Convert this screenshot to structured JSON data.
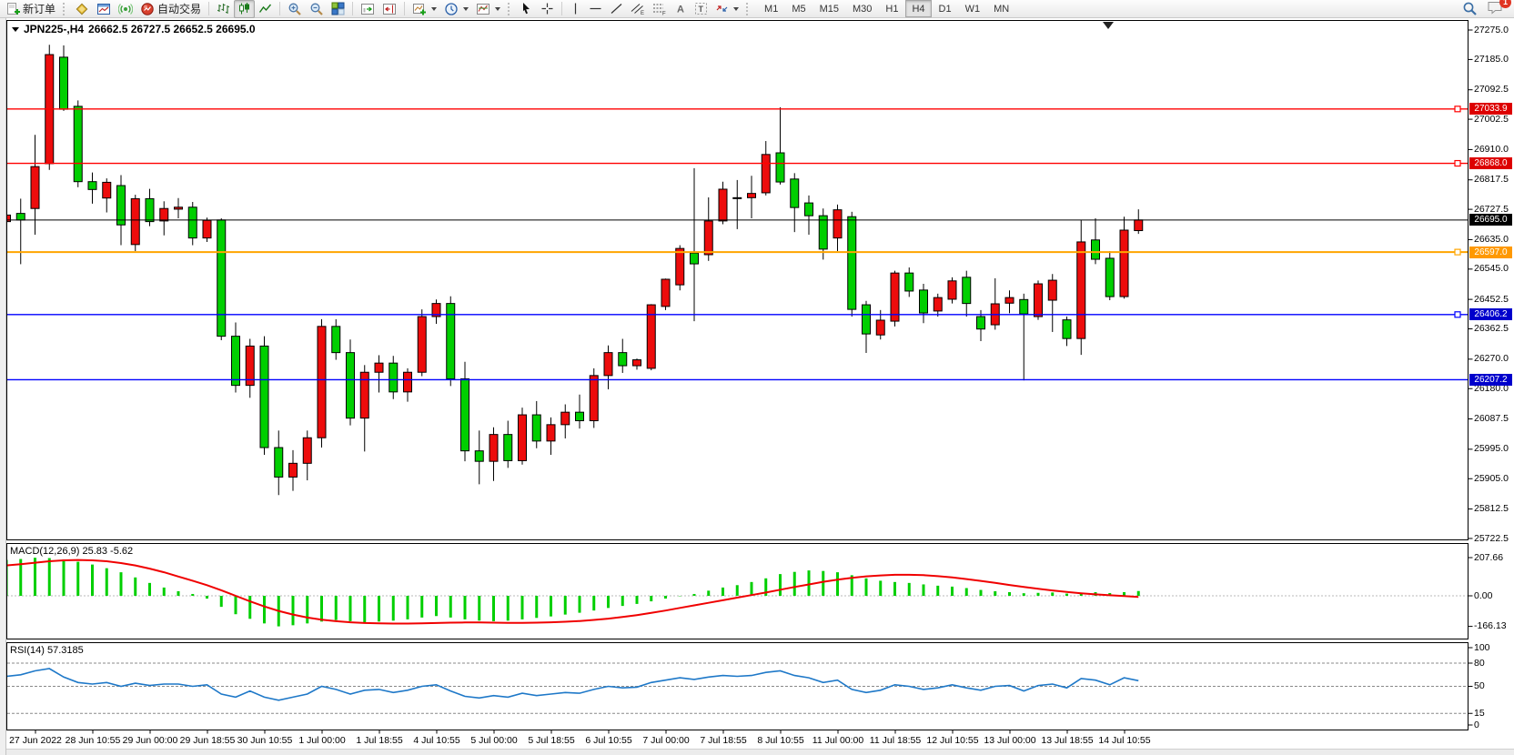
{
  "toolbar": {
    "new_order": "新订单",
    "auto_trading": "自动交易",
    "timeframes": [
      "M1",
      "M5",
      "M15",
      "M30",
      "H1",
      "H4",
      "D1",
      "W1",
      "MN"
    ],
    "active_timeframe": "H4",
    "chat_badge": "1"
  },
  "chart": {
    "symbol_period": "JPN225-,H4",
    "ohlc_readout": "26662.5 26727.5 26652.5 26695.0"
  },
  "macd_panel": {
    "label": "MACD(12,26,9) 25.83 -5.62",
    "axis_labels": [
      "207.66",
      "0.00",
      "-166.13"
    ]
  },
  "rsi_panel": {
    "label": "RSI(14) 57.3185",
    "axis_labels": [
      "100",
      "80",
      "50",
      "15",
      "0"
    ]
  },
  "chart_data": {
    "type": "candlestick",
    "symbol": "JPN225-",
    "period": "H4",
    "up_color": "#ed0c0c",
    "down_color": "#00cf00",
    "price_range": [
      25722.5,
      27275.0
    ],
    "y_ticks": [
      "27275.0",
      "27185.0",
      "27092.5",
      "27002.5",
      "26910.0",
      "26817.5",
      "26727.5",
      "26635.0",
      "26545.0",
      "26452.5",
      "26362.5",
      "26270.0",
      "26180.0",
      "26087.5",
      "25995.0",
      "25905.0",
      "25812.5",
      "25722.5"
    ],
    "levels": [
      {
        "value": 27033.9,
        "label": "27033.9",
        "color": "#ff0000",
        "label_bg": "#dd0000",
        "marker": true
      },
      {
        "value": 26868.0,
        "label": "26868.0",
        "color": "#ff0000",
        "label_bg": "#dd0000",
        "marker": true
      },
      {
        "value": 26597.0,
        "label": "26597.0",
        "color": "#ffa500",
        "label_bg": "#ff9900",
        "marker": true
      },
      {
        "value": 26406.2,
        "label": "26406.2",
        "color": "#0000ff",
        "label_bg": "#0000cc",
        "marker": true
      },
      {
        "value": 26207.2,
        "label": "26207.2",
        "color": "#0000ff",
        "label_bg": "#0000cc",
        "marker": false
      }
    ],
    "current_price": {
      "value": 26695.0,
      "label": "26695.0",
      "label_bg": "#000000"
    },
    "x_labels": [
      "27 Jun 2022",
      "28 Jun 10:55",
      "29 Jun 00:00",
      "29 Jun 18:55",
      "30 Jun 10:55",
      "1 Jul 00:00",
      "1 Jul 18:55",
      "4 Jul 10:55",
      "5 Jul 00:00",
      "5 Jul 18:55",
      "6 Jul 10:55",
      "7 Jul 00:00",
      "7 Jul 18:55",
      "8 Jul 10:55",
      "11 Jul 00:00",
      "11 Jul 18:55",
      "12 Jul 10:55",
      "13 Jul 00:00",
      "13 Jul 18:55",
      "14 Jul 10:55"
    ],
    "candles": [
      [
        26690,
        26740,
        26650,
        26710
      ],
      [
        26715,
        26760,
        26560,
        26695
      ],
      [
        26730,
        26955,
        26650,
        26858
      ],
      [
        26867,
        27230,
        26848,
        27200
      ],
      [
        27192,
        27228,
        27028,
        27033
      ],
      [
        27042,
        27060,
        26795,
        26812
      ],
      [
        26812,
        26840,
        26745,
        26788
      ],
      [
        26762,
        26822,
        26718,
        26810
      ],
      [
        26800,
        26832,
        26618,
        26680
      ],
      [
        26620,
        26772,
        26600,
        26760
      ],
      [
        26760,
        26790,
        26676,
        26690
      ],
      [
        26692,
        26752,
        26648,
        26730
      ],
      [
        26728,
        26762,
        26700,
        26734
      ],
      [
        26734,
        26750,
        26618,
        26640
      ],
      [
        26640,
        26702,
        26628,
        26694
      ],
      [
        26695,
        26700,
        26328,
        26340
      ],
      [
        26340,
        26382,
        26168,
        26190
      ],
      [
        26190,
        26332,
        26152,
        26310
      ],
      [
        26310,
        26340,
        25978,
        26000
      ],
      [
        26000,
        26052,
        25855,
        25910
      ],
      [
        25910,
        25992,
        25868,
        25952
      ],
      [
        25952,
        26052,
        25900,
        26030
      ],
      [
        26030,
        26392,
        26000,
        26370
      ],
      [
        26370,
        26392,
        26268,
        26290
      ],
      [
        26290,
        26330,
        26068,
        26090
      ],
      [
        26090,
        26252,
        25988,
        26230
      ],
      [
        26230,
        26282,
        26168,
        26258
      ],
      [
        26258,
        26280,
        26148,
        26170
      ],
      [
        26170,
        26242,
        26140,
        26230
      ],
      [
        26230,
        26422,
        26218,
        26400
      ],
      [
        26400,
        26452,
        26378,
        26440
      ],
      [
        26440,
        26462,
        26188,
        26210
      ],
      [
        26210,
        26262,
        25958,
        25990
      ],
      [
        25990,
        26052,
        25888,
        25958
      ],
      [
        25958,
        26062,
        25898,
        26040
      ],
      [
        26040,
        26082,
        25938,
        25960
      ],
      [
        25960,
        26122,
        25948,
        26100
      ],
      [
        26100,
        26142,
        25998,
        26020
      ],
      [
        26020,
        26092,
        25978,
        26070
      ],
      [
        26070,
        26132,
        26028,
        26108
      ],
      [
        26108,
        26162,
        26058,
        26082
      ],
      [
        26082,
        26242,
        26060,
        26220
      ],
      [
        26220,
        26312,
        26178,
        26290
      ],
      [
        26290,
        26332,
        26228,
        26250
      ],
      [
        26250,
        26272,
        26238,
        26268
      ],
      [
        26242,
        26438,
        26236,
        26436
      ],
      [
        26431,
        26516,
        26420,
        26514
      ],
      [
        26497,
        26618,
        26480,
        26608
      ],
      [
        26594,
        26853,
        26386,
        26561
      ],
      [
        26589,
        26764,
        26570,
        26692
      ],
      [
        26692,
        26812,
        26682,
        26789
      ],
      [
        26761,
        26817,
        26667,
        26763
      ],
      [
        26763,
        26830,
        26700,
        26776
      ],
      [
        26778,
        26936,
        26770,
        26895
      ],
      [
        26900,
        27039,
        26803,
        26811
      ],
      [
        26820,
        26838,
        26658,
        26733
      ],
      [
        26747,
        26770,
        26650,
        26708
      ],
      [
        26708,
        26730,
        26574,
        26606
      ],
      [
        26640,
        26742,
        26600,
        26726
      ],
      [
        26705,
        26720,
        26400,
        26422
      ],
      [
        26436,
        26448,
        26289,
        26347
      ],
      [
        26344,
        26420,
        26330,
        26389
      ],
      [
        26386,
        26540,
        26370,
        26533
      ],
      [
        26533,
        26550,
        26460,
        26478
      ],
      [
        26481,
        26500,
        26380,
        26411
      ],
      [
        26417,
        26470,
        26400,
        26458
      ],
      [
        26453,
        26520,
        26440,
        26509
      ],
      [
        26520,
        26540,
        26400,
        26440
      ],
      [
        26400,
        26420,
        26325,
        26362
      ],
      [
        26375,
        26517,
        26360,
        26439
      ],
      [
        26441,
        26480,
        26410,
        26458
      ],
      [
        26452,
        26470,
        26205,
        26408
      ],
      [
        26400,
        26510,
        26390,
        26500
      ],
      [
        26450,
        26530,
        26353,
        26511
      ],
      [
        26390,
        26400,
        26310,
        26333
      ],
      [
        26333,
        26695,
        26283,
        26628
      ],
      [
        26634,
        26700,
        26560,
        26575
      ],
      [
        26578,
        26600,
        26450,
        26461
      ],
      [
        26461,
        26705,
        26455,
        26664
      ],
      [
        26662.5,
        26727.5,
        26652.5,
        26695.0
      ]
    ],
    "macd": {
      "params": "12,26,9",
      "last": 25.83,
      "signal_last": -5.62,
      "scale_max": 207.66,
      "scale_min": -166.13,
      "histogram": [
        195,
        200,
        207,
        205,
        198,
        185,
        170,
        150,
        128,
        100,
        70,
        45,
        25,
        10,
        -15,
        -60,
        -100,
        -125,
        -150,
        -166,
        -160,
        -150,
        -140,
        -132,
        -138,
        -145,
        -140,
        -135,
        -128,
        -118,
        -110,
        -118,
        -128,
        -135,
        -138,
        -135,
        -128,
        -120,
        -112,
        -102,
        -92,
        -80,
        -66,
        -55,
        -44,
        -30,
        -15,
        -2,
        10,
        28,
        45,
        58,
        75,
        95,
        118,
        130,
        138,
        135,
        128,
        112,
        95,
        82,
        75,
        70,
        62,
        55,
        50,
        42,
        32,
        25,
        20,
        14,
        16,
        18,
        12,
        16,
        20,
        15,
        20,
        26
      ],
      "signal": [
        165,
        172,
        180,
        188,
        193,
        195,
        193,
        188,
        178,
        165,
        148,
        128,
        105,
        82,
        58,
        30,
        0,
        -30,
        -58,
        -82,
        -102,
        -118,
        -130,
        -138,
        -144,
        -148,
        -150,
        -151,
        -151,
        -150,
        -148,
        -146,
        -145,
        -145,
        -146,
        -147,
        -147,
        -146,
        -144,
        -141,
        -137,
        -131,
        -124,
        -115,
        -105,
        -93,
        -80,
        -66,
        -52,
        -38,
        -24,
        -10,
        4,
        18,
        33,
        48,
        62,
        76,
        88,
        98,
        106,
        111,
        114,
        114,
        112,
        107,
        100,
        91,
        81,
        70,
        59,
        48,
        38,
        29,
        21,
        14,
        8,
        3,
        -1,
        -6
      ]
    },
    "rsi": {
      "period": 14,
      "last": 57.3185,
      "levels": [
        80,
        50,
        15
      ],
      "range": [
        0,
        100
      ],
      "values": [
        63,
        65,
        70,
        73,
        62,
        55,
        53,
        55,
        50,
        54,
        51,
        53,
        53,
        50,
        52,
        40,
        36,
        44,
        36,
        32,
        36,
        40,
        50,
        46,
        40,
        45,
        46,
        42,
        45,
        50,
        52,
        44,
        37,
        35,
        38,
        36,
        41,
        38,
        40,
        42,
        41,
        46,
        50,
        48,
        49,
        55,
        58,
        61,
        59,
        62,
        64,
        63,
        64,
        68,
        70,
        64,
        61,
        55,
        58,
        46,
        42,
        45,
        52,
        50,
        46,
        48,
        52,
        48,
        45,
        50,
        51,
        44,
        51,
        53,
        48,
        60,
        58,
        52,
        61,
        57.3
      ]
    }
  }
}
